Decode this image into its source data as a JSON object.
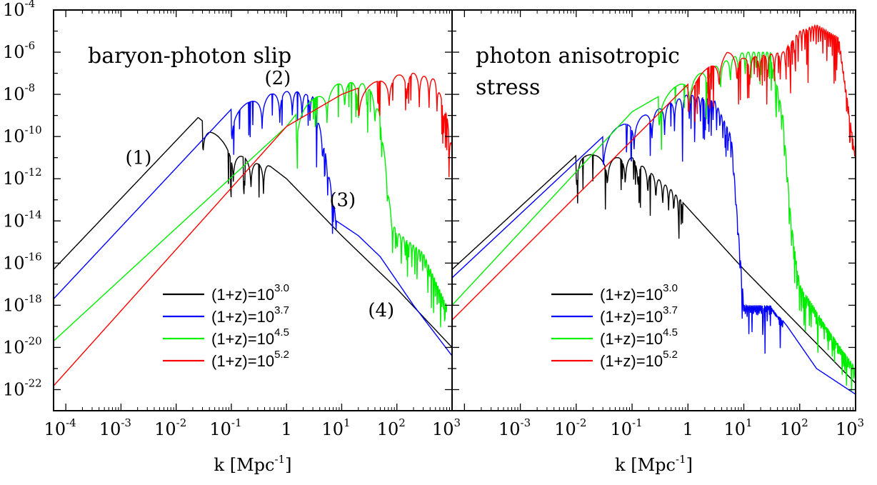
{
  "chart_data": [
    {
      "type": "line",
      "panel": "left",
      "title": "baryon-photon slip",
      "xlabel": "k [Mpc^-1]",
      "xscale": "log",
      "yscale": "log",
      "xlim": [
        6e-05,
        1000
      ],
      "ylim": [
        1e-23,
        0.0001
      ],
      "xticks": [
        {
          "base": "10",
          "exp": "-4"
        },
        {
          "base": "10",
          "exp": "-3"
        },
        {
          "base": "10",
          "exp": "-2"
        },
        {
          "base": "10",
          "exp": "-1"
        },
        {
          "base": "1",
          "exp": ""
        },
        {
          "base": "10",
          "exp": "1"
        },
        {
          "base": "10",
          "exp": "2"
        },
        {
          "base": "10",
          "exp": "3"
        }
      ],
      "yticks": [
        {
          "base": "10",
          "exp": "-4"
        },
        {
          "base": "10",
          "exp": "-6"
        },
        {
          "base": "10",
          "exp": "-8"
        },
        {
          "base": "10",
          "exp": "-10"
        },
        {
          "base": "10",
          "exp": "-12"
        },
        {
          "base": "10",
          "exp": "-14"
        },
        {
          "base": "10",
          "exp": "-16"
        },
        {
          "base": "10",
          "exp": "-18"
        },
        {
          "base": "10",
          "exp": "-20"
        },
        {
          "base": "10",
          "exp": "-22"
        }
      ],
      "annotations": [
        "(1)",
        "(2)",
        "(3)",
        "(4)"
      ],
      "annotation_positions_data": [
        [
          0.0012,
          5e-12
        ],
        [
          0.4,
          3e-08
        ],
        [
          6,
          5e-14
        ],
        [
          30,
          3e-19
        ]
      ],
      "legend": {
        "location": "lower-center",
        "entries": [
          {
            "prefix": "(1+z)=10",
            "exp": "3.0",
            "color": "#000000"
          },
          {
            "prefix": "(1+z)=10",
            "exp": "3.7",
            "color": "#0000ff"
          },
          {
            "prefix": "(1+z)=10",
            "exp": "4.5",
            "color": "#00ee00"
          },
          {
            "prefix": "(1+z)=10",
            "exp": "5.2",
            "color": "#ff0000"
          }
        ]
      },
      "series": [
        {
          "color": "#000000",
          "osc_range": [
            0.03,
            0.5
          ],
          "x": [
            6e-05,
            0.025,
            0.04,
            0.1,
            0.3,
            0.5,
            1,
            10,
            100,
            1000
          ],
          "y": [
            5e-17,
            8e-10,
            3e-10,
            2e-11,
            5e-12,
            4e-12,
            1e-12,
            2e-15,
            6e-18,
            1e-20
          ]
        },
        {
          "color": "#0000ff",
          "osc_range": [
            0.1,
            8
          ],
          "x": [
            6e-05,
            0.1,
            0.5,
            1.3,
            3,
            5,
            8,
            20,
            50,
            200,
            1000
          ],
          "y": [
            2e-18,
            2e-09,
            1e-08,
            1.5e-08,
            8e-09,
            2e-11,
            1e-14,
            2e-15,
            2e-16,
            1e-18,
            4e-21
          ]
        },
        {
          "color": "#00ee00",
          "osc_range": [
            1.5,
            800
          ],
          "x": [
            6e-05,
            1,
            2,
            10,
            30,
            50,
            80,
            100,
            300,
            800
          ],
          "y": [
            2e-20,
            3e-10,
            3e-09,
            4e-08,
            3e-08,
            1e-09,
            1e-14,
            3e-15,
            3e-16,
            1e-18
          ]
        },
        {
          "color": "#ff0000",
          "osc_range": [
            20,
            1000
          ],
          "x": [
            6e-05,
            1,
            10,
            30,
            100,
            200,
            500,
            800,
            1000
          ],
          "y": [
            1.5e-22,
            3e-10,
            1e-08,
            3e-08,
            8e-08,
            1e-07,
            5e-08,
            1e-09,
            3e-11
          ]
        }
      ]
    },
    {
      "type": "line",
      "panel": "right",
      "title": "photon anisotropic stress",
      "title_lines": [
        "photon anisotropic",
        "stress"
      ],
      "xlabel": "k [Mpc^-1]",
      "xscale": "log",
      "yscale": "log",
      "xlim": [
        6e-05,
        1000
      ],
      "ylim": [
        1e-23,
        0.0001
      ],
      "xticks": [
        {
          "base": "10",
          "exp": "-3"
        },
        {
          "base": "10",
          "exp": "-2"
        },
        {
          "base": "10",
          "exp": "-1"
        },
        {
          "base": "1",
          "exp": ""
        },
        {
          "base": "10",
          "exp": "1"
        },
        {
          "base": "10",
          "exp": "2"
        },
        {
          "base": "10",
          "exp": "3"
        }
      ],
      "yticks": [],
      "annotations": [],
      "legend": {
        "location": "lower-center",
        "entries": [
          {
            "prefix": "(1+z)=10",
            "exp": "3.0",
            "color": "#000000"
          },
          {
            "prefix": "(1+z)=10",
            "exp": "3.7",
            "color": "#0000ff"
          },
          {
            "prefix": "(1+z)=10",
            "exp": "4.5",
            "color": "#00ee00"
          },
          {
            "prefix": "(1+z)=10",
            "exp": "5.2",
            "color": "#ff0000"
          }
        ]
      },
      "series": [
        {
          "color": "#000000",
          "osc_range": [
            0.01,
            0.8
          ],
          "x": [
            6e-05,
            0.012,
            0.03,
            0.1,
            0.5,
            1,
            10,
            100,
            1000
          ],
          "y": [
            5e-17,
            2e-11,
            1e-11,
            1e-11,
            3e-13,
            4e-14,
            5e-17,
            1e-19,
            2e-22
          ]
        },
        {
          "color": "#0000ff",
          "osc_range": [
            0.03,
            50
          ],
          "x": [
            6e-05,
            0.04,
            0.3,
            1,
            3,
            6,
            10,
            30,
            60,
            200,
            1000
          ],
          "y": [
            2e-17,
            2e-10,
            2e-09,
            1e-08,
            5e-09,
            1e-10,
            1e-18,
            1e-18,
            1e-19,
            1e-21,
            6e-23
          ]
        },
        {
          "color": "#00ee00",
          "osc_range": [
            0.3,
            1000
          ],
          "x": [
            6e-05,
            0.1,
            1,
            10,
            30,
            50,
            70,
            100,
            300,
            1000
          ],
          "y": [
            1e-18,
            1.5e-09,
            5e-08,
            1e-06,
            1e-06,
            1e-09,
            1e-14,
            1e-17,
            1e-19,
            1e-21
          ]
        },
        {
          "color": "#ff0000",
          "osc_range": [
            1,
            1000
          ],
          "x": [
            6e-05,
            1,
            5,
            10,
            50,
            100,
            200,
            500,
            1000
          ],
          "y": [
            2e-19,
            3e-08,
            1e-06,
            5e-07,
            1e-06,
            1e-05,
            2e-05,
            5e-06,
            1e-11
          ]
        }
      ]
    }
  ]
}
